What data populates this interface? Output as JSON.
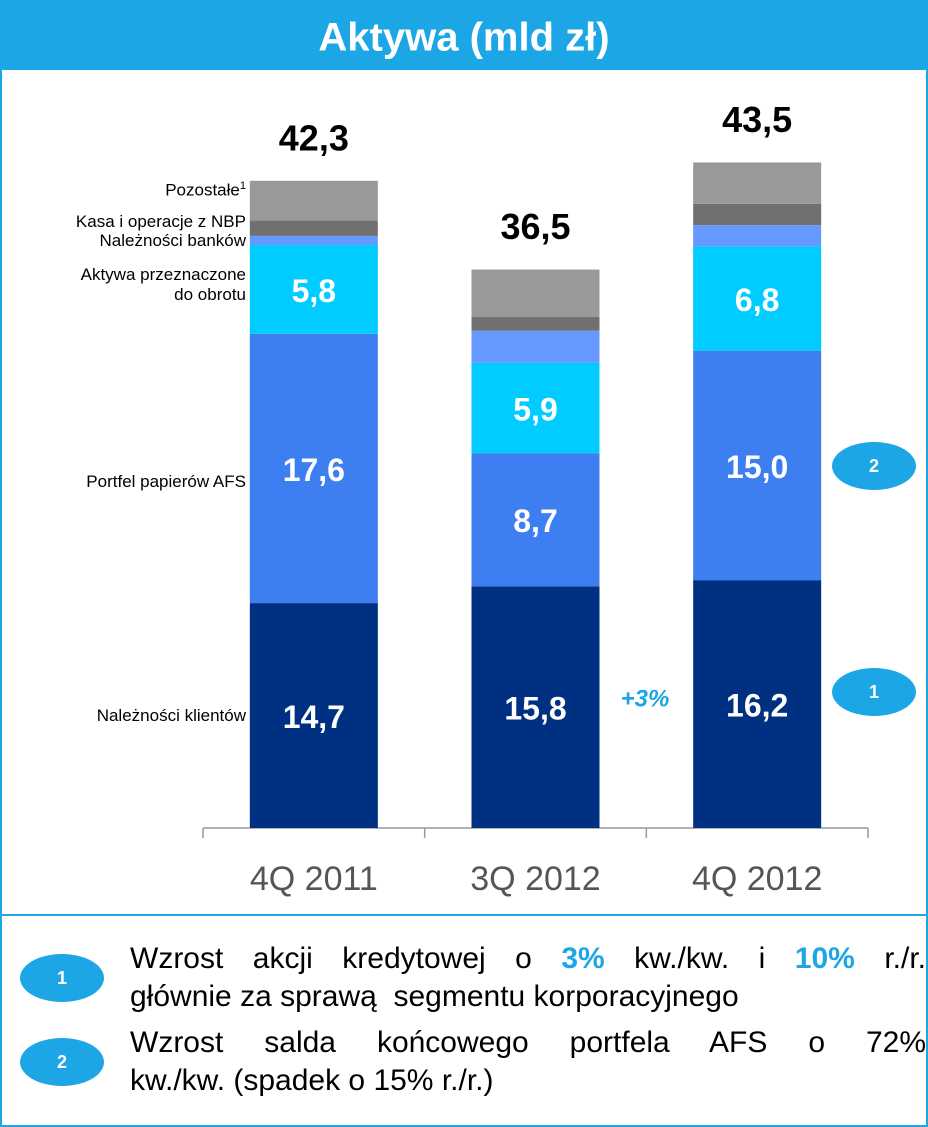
{
  "chart_data": {
    "type": "stacked-bar",
    "title": "Aktywa (mld zł)",
    "categories": [
      "4Q 2011",
      "3Q 2012",
      "4Q 2012"
    ],
    "ylim": [
      0,
      45
    ],
    "series": [
      {
        "name": "Należności klientów",
        "color": "#003082",
        "values": [
          14.7,
          15.8,
          16.2
        ],
        "value_labels": [
          "14,7",
          "15,8",
          "16,2"
        ]
      },
      {
        "name": "Portfel papierów AFS",
        "color": "#3d7ff0",
        "values": [
          17.6,
          8.7,
          15.0
        ],
        "value_labels": [
          "17,6",
          "8,7",
          "15,0"
        ]
      },
      {
        "name": "Aktywa przeznaczone do obrotu",
        "color": "#00ccff",
        "values": [
          5.8,
          5.9,
          6.8
        ],
        "value_labels": [
          "5,8",
          "5,9",
          "6,8"
        ]
      },
      {
        "name": "Należności banków",
        "color": "#6699ff",
        "values": [
          0.6,
          2.1,
          1.4
        ]
      },
      {
        "name": "Kasa i operacje z NBP",
        "color": "#707070",
        "values": [
          1.0,
          0.9,
          1.4
        ]
      },
      {
        "name": "Pozostałe",
        "note": "1",
        "color": "#999999",
        "values": [
          2.6,
          3.1,
          2.7
        ]
      }
    ],
    "totals": [
      42.3,
      36.5,
      43.5
    ],
    "total_labels": [
      "42,3",
      "36,5",
      "43,5"
    ],
    "annotations": [
      {
        "text": "+3%"
      },
      {
        "marker": "2"
      },
      {
        "marker": "1"
      }
    ]
  },
  "notes": [
    {
      "marker": "1",
      "lines": [
        [
          {
            "text": "Wzrost akcji kredytowej o "
          },
          {
            "text": "3%",
            "highlight": true
          },
          {
            "text": " kw./kw. i "
          },
          {
            "text": "10%",
            "highlight": true
          },
          {
            "text": " r./r."
          }
        ],
        [
          {
            "text": "głównie za sprawą  segmentu korporacyjnego"
          }
        ]
      ]
    },
    {
      "marker": "2",
      "lines": [
        [
          {
            "text": "Wzrost salda końcowego portfela AFS o 72%"
          }
        ],
        [
          {
            "text": "kw./kw. (spadek o 15% r./r.)"
          }
        ]
      ]
    }
  ]
}
